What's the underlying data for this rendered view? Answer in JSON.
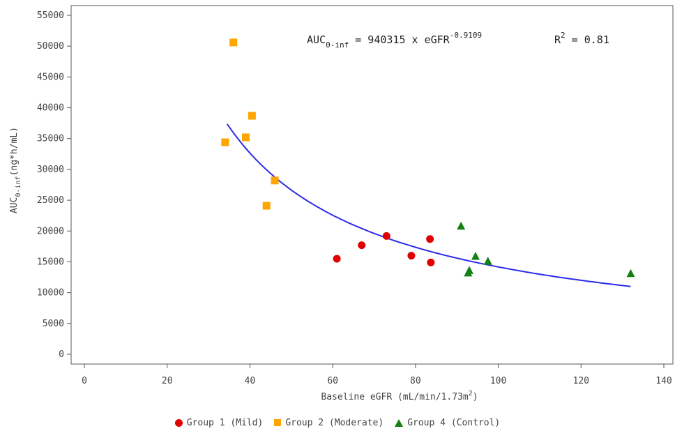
{
  "chart_data": {
    "type": "scatter",
    "xlabel": "Baseline eGFR (mL/min/1.73m",
    "xlabel_sup": "2",
    "xlabel_tail": ")",
    "ylabel_main": "AUC",
    "ylabel_sub": "0-inf",
    "ylabel_tail": "(ng*h/mL)",
    "xlim": [
      0,
      140
    ],
    "ylim": [
      0,
      55000
    ],
    "xticks": [
      0,
      20,
      40,
      60,
      80,
      100,
      120,
      140
    ],
    "yticks": [
      0,
      5000,
      10000,
      15000,
      20000,
      25000,
      30000,
      35000,
      40000,
      45000,
      50000,
      55000
    ],
    "grid": false,
    "legend_position": "bottom",
    "annotation": {
      "auc": "AUC",
      "auc_sub": "0-inf",
      "eq_mid": " = 940315 x eGFR",
      "exponent": "-0.9109",
      "r2_label": "R",
      "r2_sup": "2",
      "r2_value": " = 0.81"
    },
    "fit": {
      "label": "power fit",
      "coefficient": 940315,
      "exponent": -0.9109,
      "x_range": [
        34.5,
        132
      ],
      "color": "#2b2be6"
    },
    "series": [
      {
        "name": "Group 1 (Mild)",
        "marker": "circle",
        "color": "#e00000",
        "points": [
          [
            61,
            15500
          ],
          [
            67,
            17700
          ],
          [
            73,
            19200
          ],
          [
            79,
            16000
          ],
          [
            83.5,
            18700
          ],
          [
            83.7,
            14900
          ]
        ]
      },
      {
        "name": "Group 2 (Moderate)",
        "marker": "square",
        "color": "#ffa500",
        "points": [
          [
            36,
            50600
          ],
          [
            34,
            34400
          ],
          [
            39,
            35200
          ],
          [
            40.5,
            38700
          ],
          [
            46,
            28200
          ],
          [
            44,
            24100
          ]
        ]
      },
      {
        "name": "Group 4 (Control)",
        "marker": "triangle",
        "color": "#148014",
        "points": [
          [
            91,
            20800
          ],
          [
            94.5,
            15900
          ],
          [
            97.5,
            15100
          ],
          [
            93,
            13600
          ],
          [
            92.7,
            13200
          ],
          [
            132,
            13100
          ]
        ]
      }
    ]
  }
}
